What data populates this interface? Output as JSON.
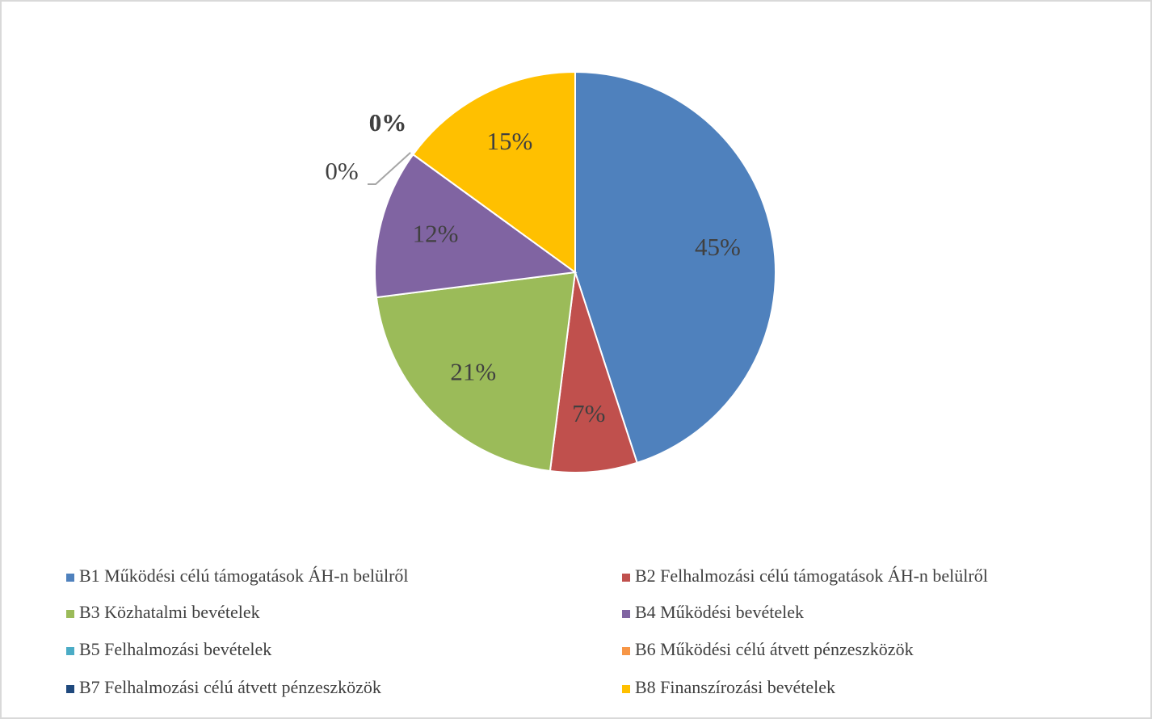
{
  "chart_data": {
    "type": "pie",
    "categories": [
      "B1 Működési célú támogatások ÁH-n belülről",
      "B2 Felhalmozási célú támogatások ÁH-n belülről",
      "B3 Közhatalmi bevételek",
      "B4 Működési bevételek",
      "B5 Felhalmozási bevételek",
      "B6 Működési célú átvett pénzeszközök",
      "B7 Felhalmozási célú átvett pénzeszközök",
      "B8 Finanszírozási bevételek"
    ],
    "values": [
      45,
      7,
      21,
      12,
      0,
      0,
      0,
      15
    ],
    "value_labels": [
      "45%",
      "7%",
      "21%",
      "12%",
      "0%",
      "0%",
      "0%",
      "15%"
    ],
    "colors": [
      "#4f81bd",
      "#c0504d",
      "#9bbb59",
      "#8064a2",
      "#4bacc6",
      "#f79646",
      "#1f497d",
      "#ffc000"
    ],
    "legend": "bottom"
  }
}
